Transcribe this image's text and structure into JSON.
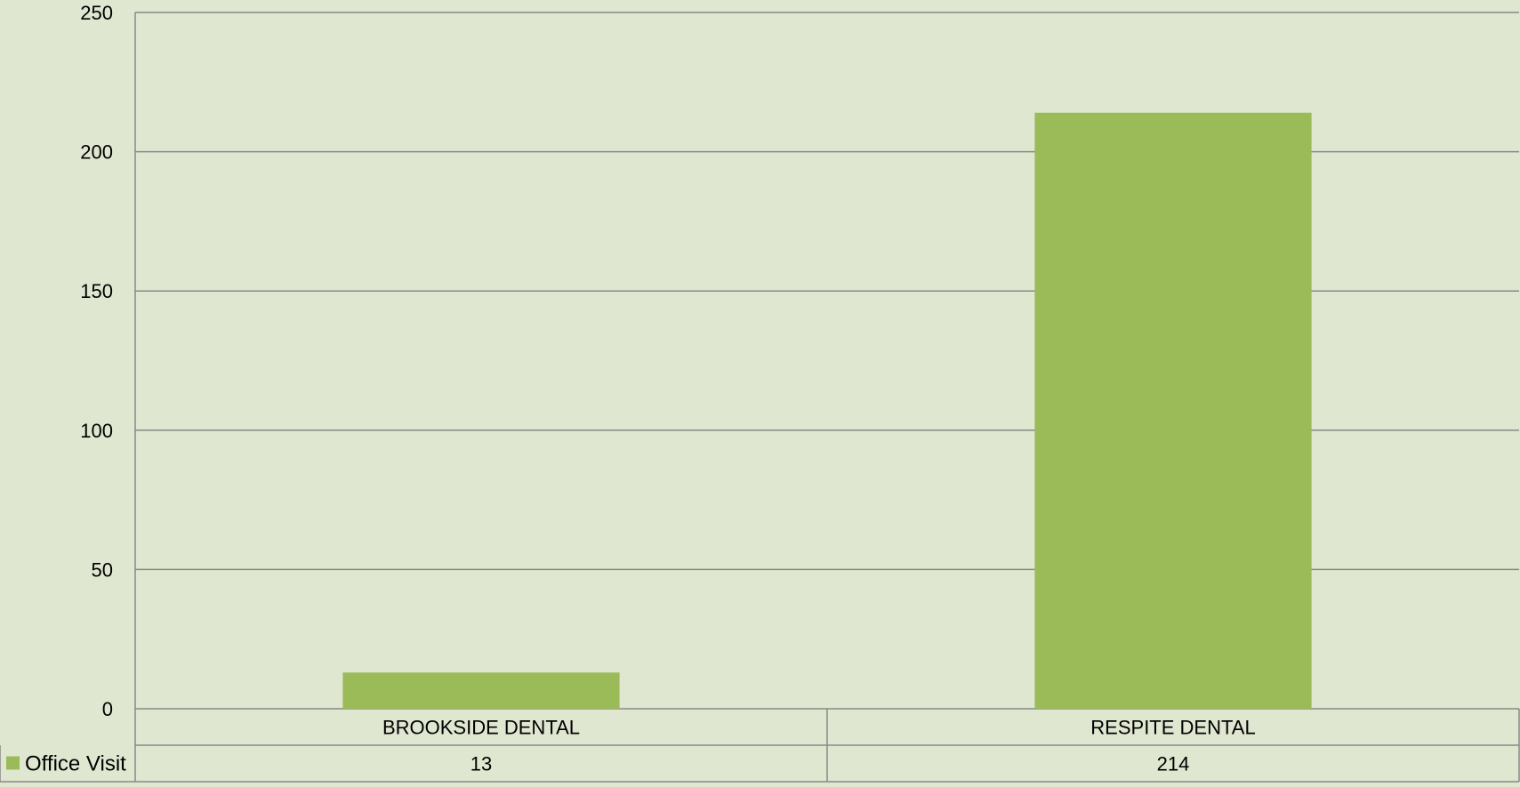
{
  "chart_data": {
    "type": "bar",
    "categories": [
      "BROOKSIDE DENTAL",
      "RESPITE DENTAL"
    ],
    "series": [
      {
        "name": "Office Visit",
        "values": [
          13,
          214
        ],
        "color": "#9bbb59"
      }
    ],
    "ylim": [
      0,
      250
    ],
    "yticks": [
      0,
      50,
      100,
      150,
      200,
      250
    ],
    "grid": true,
    "legend": "data-table-row",
    "data_table": true
  },
  "colors": {
    "background": "#dfe7d0",
    "gridline": "#888888",
    "bar": "#9bbb59"
  }
}
